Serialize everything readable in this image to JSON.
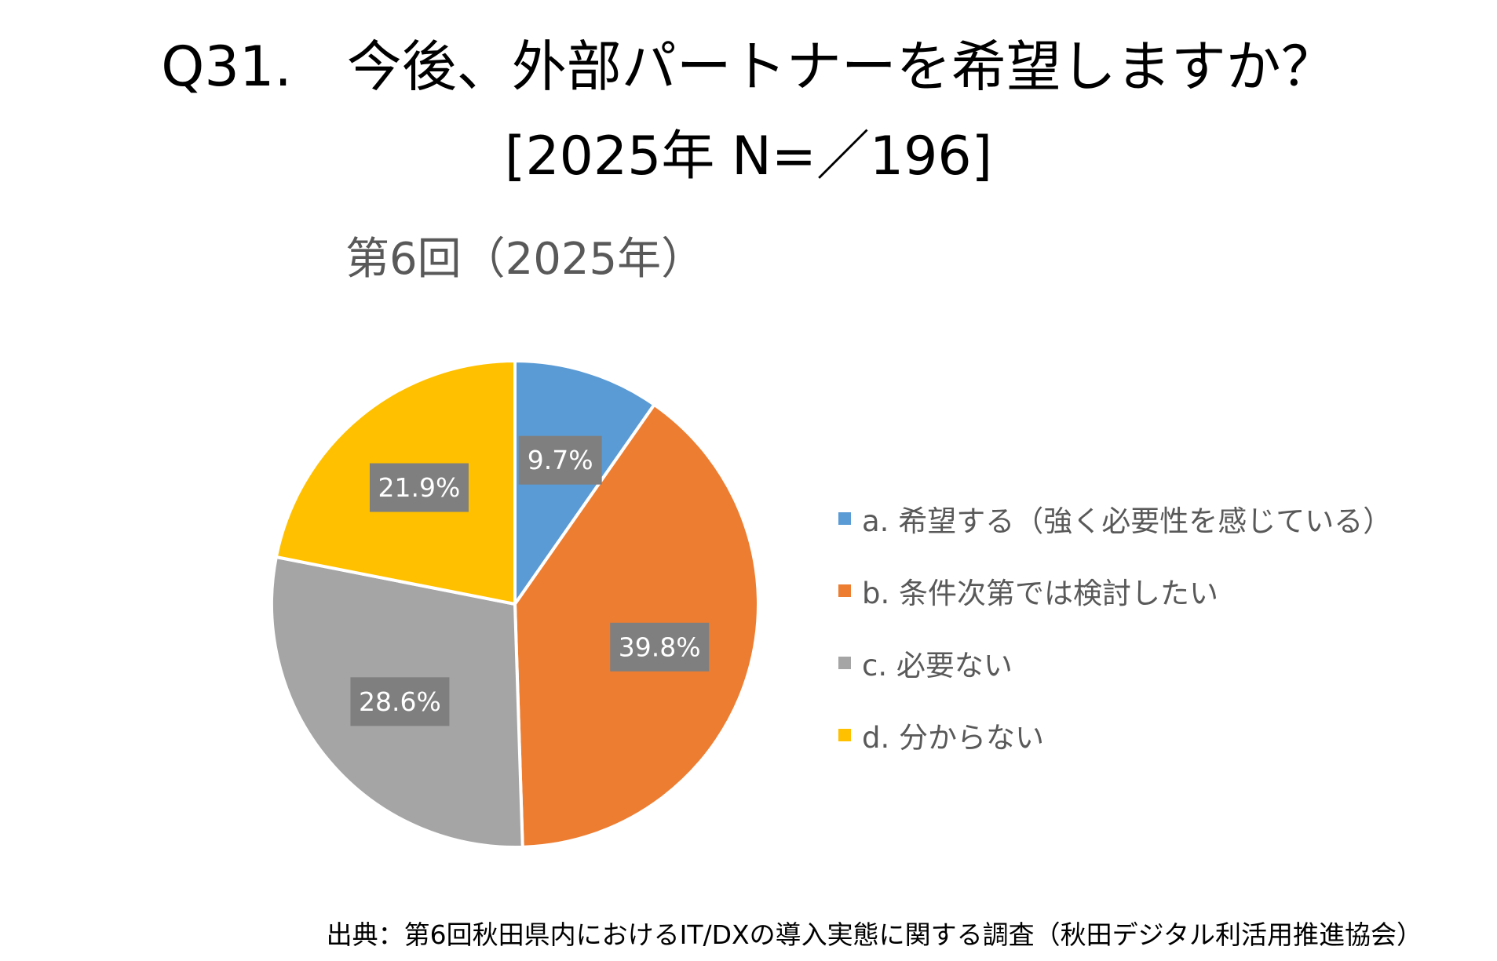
{
  "title": "Q31.　今後、外部パートナーを希望しますか？",
  "subtitle": "[2025年 N=／196]",
  "source": "出典：第6回秋田県内におけるIT/DXの導入実態に関する調査（秋田デジタル利活用推進協会）",
  "chart_data": {
    "type": "pie",
    "title": "第6回（2025年）",
    "categories": [
      "a. 希望する（強く必要性を感じている）",
      "b. 条件次第では検討したい",
      "c. 必要ない",
      "d. 分からない"
    ],
    "values": [
      9.7,
      39.8,
      28.6,
      21.9
    ],
    "labels": [
      "9.7%",
      "39.8%",
      "28.6%",
      "21.9%"
    ],
    "colors": [
      "#5b9bd5",
      "#ed7d31",
      "#a5a5a5",
      "#ffc000"
    ],
    "legend_position": "right",
    "start_angle": "12 o'clock, clockwise"
  }
}
